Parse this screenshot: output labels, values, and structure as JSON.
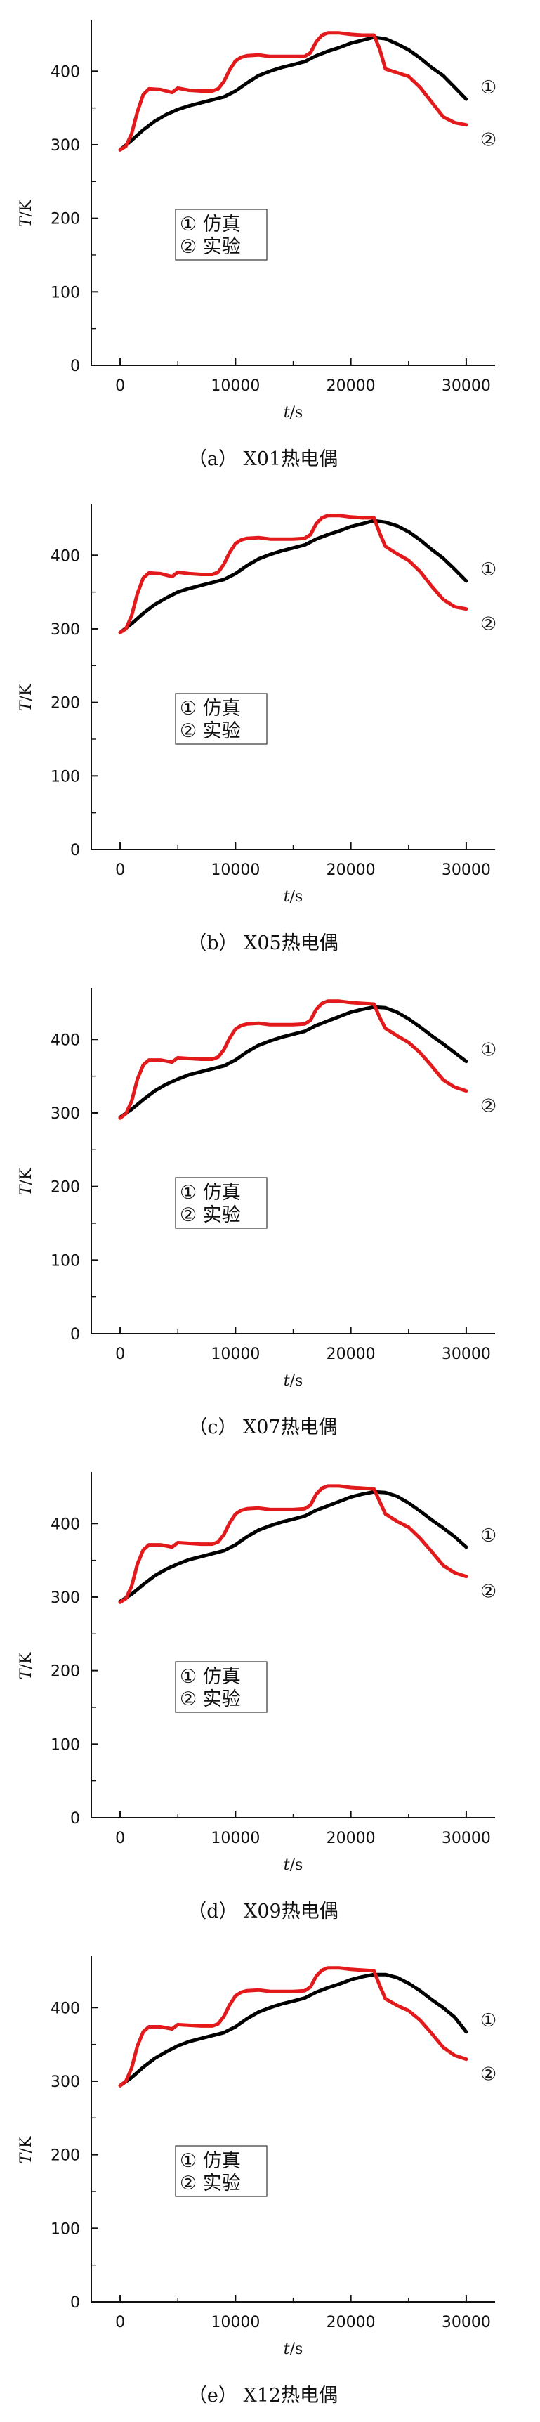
{
  "colors": {
    "simulation": "#000000",
    "experiment": "#e31a1c",
    "axis": "#111111"
  },
  "chart_data": [
    {
      "type": "line",
      "caption": "（a） X01热电偶",
      "xlabel_var": "t",
      "xlabel_unit": "/s",
      "ylabel_var": "T",
      "ylabel_unit": "/K",
      "xlim": [
        -2500,
        32500
      ],
      "ylim": [
        0,
        470
      ],
      "xticks": [
        0,
        10000,
        20000,
        30000
      ],
      "yticks": [
        0,
        100,
        200,
        300,
        400
      ],
      "grid": false,
      "legend": {
        "placement": "center-left",
        "entries": [
          "① 仿真",
          "② 实验"
        ]
      },
      "series": [
        {
          "name": "仿真",
          "end_label": "①",
          "color": "#000000",
          "x": [
            0,
            1000,
            2000,
            3000,
            4000,
            5000,
            6000,
            7000,
            8000,
            9000,
            10000,
            11000,
            12000,
            13000,
            14000,
            15000,
            16000,
            17000,
            18000,
            19000,
            20000,
            21000,
            22000,
            23000,
            24000,
            25000,
            26000,
            27000,
            28000,
            29000,
            30000
          ],
          "values": [
            293,
            306,
            320,
            332,
            341,
            348,
            353,
            357,
            361,
            365,
            373,
            384,
            394,
            400,
            405,
            409,
            413,
            421,
            427,
            432,
            438,
            442,
            446,
            444,
            437,
            429,
            418,
            405,
            394,
            378,
            362
          ]
        },
        {
          "name": "实验",
          "end_label": "②",
          "color": "#e31a1c",
          "x": [
            0,
            500,
            1000,
            1500,
            2000,
            2500,
            3500,
            4500,
            5000,
            6000,
            7000,
            8000,
            8500,
            9000,
            9500,
            10000,
            10500,
            11000,
            12000,
            13000,
            14000,
            15000,
            16000,
            16500,
            17000,
            17500,
            18000,
            19000,
            20000,
            21000,
            22000,
            22500,
            23000,
            24000,
            25000,
            26000,
            27000,
            28000,
            29000,
            30000
          ],
          "values": [
            293,
            298,
            315,
            345,
            368,
            376,
            375,
            371,
            377,
            374,
            373,
            373,
            376,
            386,
            402,
            414,
            419,
            421,
            422,
            420,
            420,
            420,
            420,
            425,
            440,
            449,
            452,
            452,
            450,
            449,
            449,
            430,
            403,
            398,
            393,
            378,
            358,
            338,
            330,
            327
          ]
        }
      ]
    },
    {
      "type": "line",
      "caption": "（b） X05热电偶",
      "xlabel_var": "t",
      "xlabel_unit": "/s",
      "ylabel_var": "T",
      "ylabel_unit": "/K",
      "xlim": [
        -2500,
        32500
      ],
      "ylim": [
        0,
        470
      ],
      "xticks": [
        0,
        10000,
        20000,
        30000
      ],
      "yticks": [
        0,
        100,
        200,
        300,
        400
      ],
      "grid": false,
      "legend": {
        "placement": "center-left",
        "entries": [
          "① 仿真",
          "② 实验"
        ]
      },
      "series": [
        {
          "name": "仿真",
          "end_label": "①",
          "color": "#000000",
          "x": [
            0,
            1000,
            2000,
            3000,
            4000,
            5000,
            6000,
            7000,
            8000,
            9000,
            10000,
            11000,
            12000,
            13000,
            14000,
            15000,
            16000,
            17000,
            18000,
            19000,
            20000,
            21000,
            22000,
            23000,
            24000,
            25000,
            26000,
            27000,
            28000,
            29000,
            30000
          ],
          "values": [
            295,
            307,
            321,
            333,
            342,
            350,
            355,
            359,
            363,
            367,
            375,
            386,
            395,
            401,
            406,
            410,
            414,
            422,
            428,
            433,
            439,
            443,
            447,
            445,
            440,
            432,
            421,
            408,
            396,
            381,
            365
          ]
        },
        {
          "name": "实验",
          "end_label": "②",
          "color": "#e31a1c",
          "x": [
            0,
            500,
            1000,
            1500,
            2000,
            2500,
            3500,
            4500,
            5000,
            6000,
            7000,
            8000,
            8500,
            9000,
            9500,
            10000,
            10500,
            11000,
            12000,
            13000,
            14000,
            15000,
            16000,
            16500,
            17000,
            17500,
            18000,
            19000,
            20000,
            21000,
            22000,
            22500,
            23000,
            24000,
            25000,
            26000,
            27000,
            28000,
            29000,
            30000
          ],
          "values": [
            295,
            300,
            318,
            348,
            369,
            376,
            375,
            371,
            377,
            375,
            374,
            374,
            377,
            388,
            404,
            416,
            421,
            423,
            424,
            422,
            422,
            422,
            423,
            428,
            443,
            451,
            454,
            454,
            452,
            451,
            451,
            430,
            412,
            402,
            393,
            378,
            358,
            340,
            330,
            327
          ]
        }
      ]
    },
    {
      "type": "line",
      "caption": "（c） X07热电偶",
      "xlabel_var": "t",
      "xlabel_unit": "/s",
      "ylabel_var": "T",
      "ylabel_unit": "/K",
      "xlim": [
        -2500,
        32500
      ],
      "ylim": [
        0,
        470
      ],
      "xticks": [
        0,
        10000,
        20000,
        30000
      ],
      "yticks": [
        0,
        100,
        200,
        300,
        400
      ],
      "grid": false,
      "legend": {
        "placement": "center-left",
        "entries": [
          "① 仿真",
          "② 实验"
        ]
      },
      "series": [
        {
          "name": "仿真",
          "end_label": "①",
          "color": "#000000",
          "x": [
            0,
            1000,
            2000,
            3000,
            4000,
            5000,
            6000,
            7000,
            8000,
            9000,
            10000,
            11000,
            12000,
            13000,
            14000,
            15000,
            16000,
            17000,
            18000,
            19000,
            20000,
            21000,
            22000,
            23000,
            24000,
            25000,
            26000,
            27000,
            28000,
            29000,
            30000
          ],
          "values": [
            294,
            305,
            318,
            330,
            339,
            346,
            352,
            356,
            360,
            364,
            372,
            383,
            392,
            398,
            403,
            407,
            411,
            419,
            425,
            431,
            437,
            441,
            444,
            443,
            437,
            428,
            417,
            405,
            394,
            382,
            370
          ]
        },
        {
          "name": "实验",
          "end_label": "②",
          "color": "#e31a1c",
          "x": [
            0,
            500,
            1000,
            1500,
            2000,
            2500,
            3500,
            4500,
            5000,
            6000,
            7000,
            8000,
            8500,
            9000,
            9500,
            10000,
            10500,
            11000,
            12000,
            13000,
            14000,
            15000,
            16000,
            16500,
            17000,
            17500,
            18000,
            19000,
            20000,
            21000,
            22000,
            22500,
            23000,
            24000,
            25000,
            26000,
            27000,
            28000,
            29000,
            30000
          ],
          "values": [
            293,
            299,
            316,
            346,
            365,
            372,
            372,
            369,
            375,
            374,
            373,
            373,
            376,
            386,
            402,
            414,
            419,
            421,
            422,
            420,
            420,
            420,
            421,
            426,
            441,
            449,
            452,
            452,
            450,
            449,
            448,
            430,
            415,
            405,
            396,
            382,
            364,
            345,
            335,
            330
          ]
        }
      ]
    },
    {
      "type": "line",
      "caption": "（d） X09热电偶",
      "xlabel_var": "t",
      "xlabel_unit": "/s",
      "ylabel_var": "T",
      "ylabel_unit": "/K",
      "xlim": [
        -2500,
        32500
      ],
      "ylim": [
        0,
        470
      ],
      "xticks": [
        0,
        10000,
        20000,
        30000
      ],
      "yticks": [
        0,
        100,
        200,
        300,
        400
      ],
      "grid": false,
      "legend": {
        "placement": "center-left",
        "entries": [
          "① 仿真",
          "② 实验"
        ]
      },
      "series": [
        {
          "name": "仿真",
          "end_label": "①",
          "color": "#000000",
          "x": [
            0,
            1000,
            2000,
            3000,
            4000,
            5000,
            6000,
            7000,
            8000,
            9000,
            10000,
            11000,
            12000,
            13000,
            14000,
            15000,
            16000,
            17000,
            18000,
            19000,
            20000,
            21000,
            22000,
            23000,
            24000,
            25000,
            26000,
            27000,
            28000,
            29000,
            30000
          ],
          "values": [
            294,
            304,
            317,
            329,
            338,
            345,
            351,
            355,
            359,
            363,
            371,
            382,
            391,
            397,
            402,
            406,
            410,
            418,
            424,
            430,
            436,
            440,
            443,
            442,
            437,
            428,
            417,
            405,
            394,
            382,
            368
          ]
        },
        {
          "name": "实验",
          "end_label": "②",
          "color": "#e31a1c",
          "x": [
            0,
            500,
            1000,
            1500,
            2000,
            2500,
            3500,
            4500,
            5000,
            6000,
            7000,
            8000,
            8500,
            9000,
            9500,
            10000,
            10500,
            11000,
            12000,
            13000,
            14000,
            15000,
            16000,
            16500,
            17000,
            17500,
            18000,
            19000,
            20000,
            21000,
            22000,
            22500,
            23000,
            24000,
            25000,
            26000,
            27000,
            28000,
            29000,
            30000
          ],
          "values": [
            293,
            298,
            315,
            345,
            364,
            371,
            371,
            368,
            374,
            373,
            372,
            372,
            375,
            385,
            401,
            413,
            418,
            420,
            421,
            419,
            419,
            419,
            420,
            425,
            440,
            448,
            451,
            451,
            449,
            448,
            447,
            430,
            413,
            403,
            395,
            380,
            362,
            343,
            333,
            328
          ]
        }
      ]
    },
    {
      "type": "line",
      "caption": "（e） X12热电偶",
      "xlabel_var": "t",
      "xlabel_unit": "/s",
      "ylabel_var": "T",
      "ylabel_unit": "/K",
      "xlim": [
        -2500,
        32500
      ],
      "ylim": [
        0,
        470
      ],
      "xticks": [
        0,
        10000,
        20000,
        30000
      ],
      "yticks": [
        0,
        100,
        200,
        300,
        400
      ],
      "grid": false,
      "legend": {
        "placement": "center-left",
        "entries": [
          "① 仿真",
          "② 实验"
        ]
      },
      "series": [
        {
          "name": "仿真",
          "end_label": "①",
          "color": "#000000",
          "x": [
            0,
            1000,
            2000,
            3000,
            4000,
            5000,
            6000,
            7000,
            8000,
            9000,
            10000,
            11000,
            12000,
            13000,
            14000,
            15000,
            16000,
            17000,
            18000,
            19000,
            20000,
            21000,
            22000,
            23000,
            24000,
            25000,
            26000,
            27000,
            28000,
            29000,
            30000
          ],
          "values": [
            294,
            305,
            319,
            331,
            340,
            348,
            354,
            358,
            362,
            366,
            374,
            385,
            394,
            400,
            405,
            409,
            413,
            421,
            427,
            432,
            438,
            442,
            445,
            445,
            441,
            433,
            423,
            411,
            400,
            387,
            367
          ]
        },
        {
          "name": "实验",
          "end_label": "②",
          "color": "#e31a1c",
          "x": [
            0,
            500,
            1000,
            1500,
            2000,
            2500,
            3500,
            4500,
            5000,
            6000,
            7000,
            8000,
            8500,
            9000,
            9500,
            10000,
            10500,
            11000,
            12000,
            13000,
            14000,
            15000,
            16000,
            16500,
            17000,
            17500,
            18000,
            19000,
            20000,
            21000,
            22000,
            22500,
            23000,
            24000,
            25000,
            26000,
            27000,
            28000,
            29000,
            30000
          ],
          "values": [
            294,
            300,
            318,
            348,
            367,
            374,
            374,
            371,
            377,
            376,
            375,
            375,
            378,
            388,
            404,
            416,
            421,
            423,
            424,
            422,
            422,
            422,
            423,
            428,
            443,
            451,
            454,
            454,
            452,
            451,
            450,
            430,
            412,
            403,
            396,
            383,
            365,
            346,
            335,
            330
          ]
        }
      ]
    }
  ]
}
